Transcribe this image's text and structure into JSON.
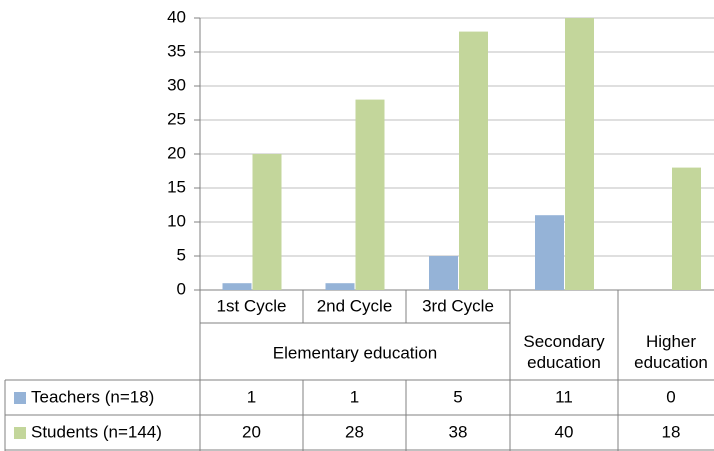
{
  "chart_data": {
    "type": "bar",
    "categories": [
      "1st Cycle",
      "2nd Cycle",
      "3rd Cycle",
      "Secondary education",
      "Higher education"
    ],
    "category_group": "Elementary education",
    "series": [
      {
        "name": "Teachers (n=18)",
        "color": "#95b3d7",
        "values": [
          1,
          1,
          5,
          11,
          0
        ]
      },
      {
        "name": "Students (n=144)",
        "color": "#c3d69b",
        "values": [
          20,
          28,
          38,
          40,
          18
        ]
      }
    ],
    "ylim": [
      0,
      40
    ],
    "yticks": [
      0,
      5,
      10,
      15,
      20,
      25,
      30,
      35,
      40
    ],
    "grid": true
  }
}
